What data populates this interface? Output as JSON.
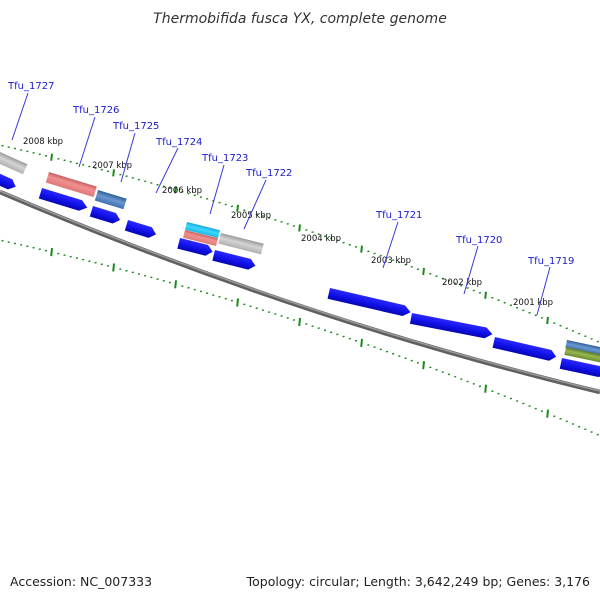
{
  "title": "Thermobifida fusca YX, complete genome",
  "footer": {
    "accession": "Accession: NC_007333",
    "topology": "Topology: circular; Length: 3,642,249 bp; Genes: 3,176"
  },
  "colors": {
    "cds_blue": "#1010e8",
    "pink": "#e88080",
    "steelblue": "#4a78b8",
    "gray": "#b8b8b8",
    "cyan": "#20c0e8",
    "olive": "#7a9a3a",
    "tick_green": "#1a8a1a",
    "backbone": "#808080",
    "label_blue": "#1a1ad0"
  },
  "kbp_labels": [
    "2008 kbp",
    "2007 kbp",
    "2006 kbp",
    "2005 kbp",
    "2004 kbp",
    "2003 kbp",
    "2002 kbp",
    "2001 kbp"
  ],
  "gene_labels": [
    "Tfu_1727",
    "Tfu_1726",
    "Tfu_1725",
    "Tfu_1724",
    "Tfu_1723",
    "Tfu_1722",
    "Tfu_1721",
    "Tfu_1720",
    "Tfu_1719"
  ],
  "features": [
    {
      "name": "gray-feature-left",
      "color": "gray"
    },
    {
      "name": "cds-left-edge",
      "color": "cds_blue"
    },
    {
      "name": "pink-feature-1726",
      "color": "pink"
    },
    {
      "name": "cds-1726",
      "color": "cds_blue"
    },
    {
      "name": "steelblue-feature-1725",
      "color": "steelblue"
    },
    {
      "name": "cds-1725",
      "color": "cds_blue"
    },
    {
      "name": "cds-1724",
      "color": "cds_blue"
    },
    {
      "name": "cyan-feature-1723",
      "color": "cyan"
    },
    {
      "name": "pink-feature-1723",
      "color": "pink"
    },
    {
      "name": "gray-feature-1723",
      "color": "gray"
    },
    {
      "name": "cds-1723",
      "color": "cds_blue"
    },
    {
      "name": "cds-1722",
      "color": "cds_blue"
    },
    {
      "name": "cds-1721",
      "color": "cds_blue"
    },
    {
      "name": "cds-1720",
      "color": "cds_blue"
    },
    {
      "name": "cds-1719",
      "color": "cds_blue"
    },
    {
      "name": "steelblue-feature-right",
      "color": "steelblue"
    },
    {
      "name": "olive-feature-right",
      "color": "olive"
    },
    {
      "name": "cds-right-edge",
      "color": "cds_blue"
    }
  ]
}
